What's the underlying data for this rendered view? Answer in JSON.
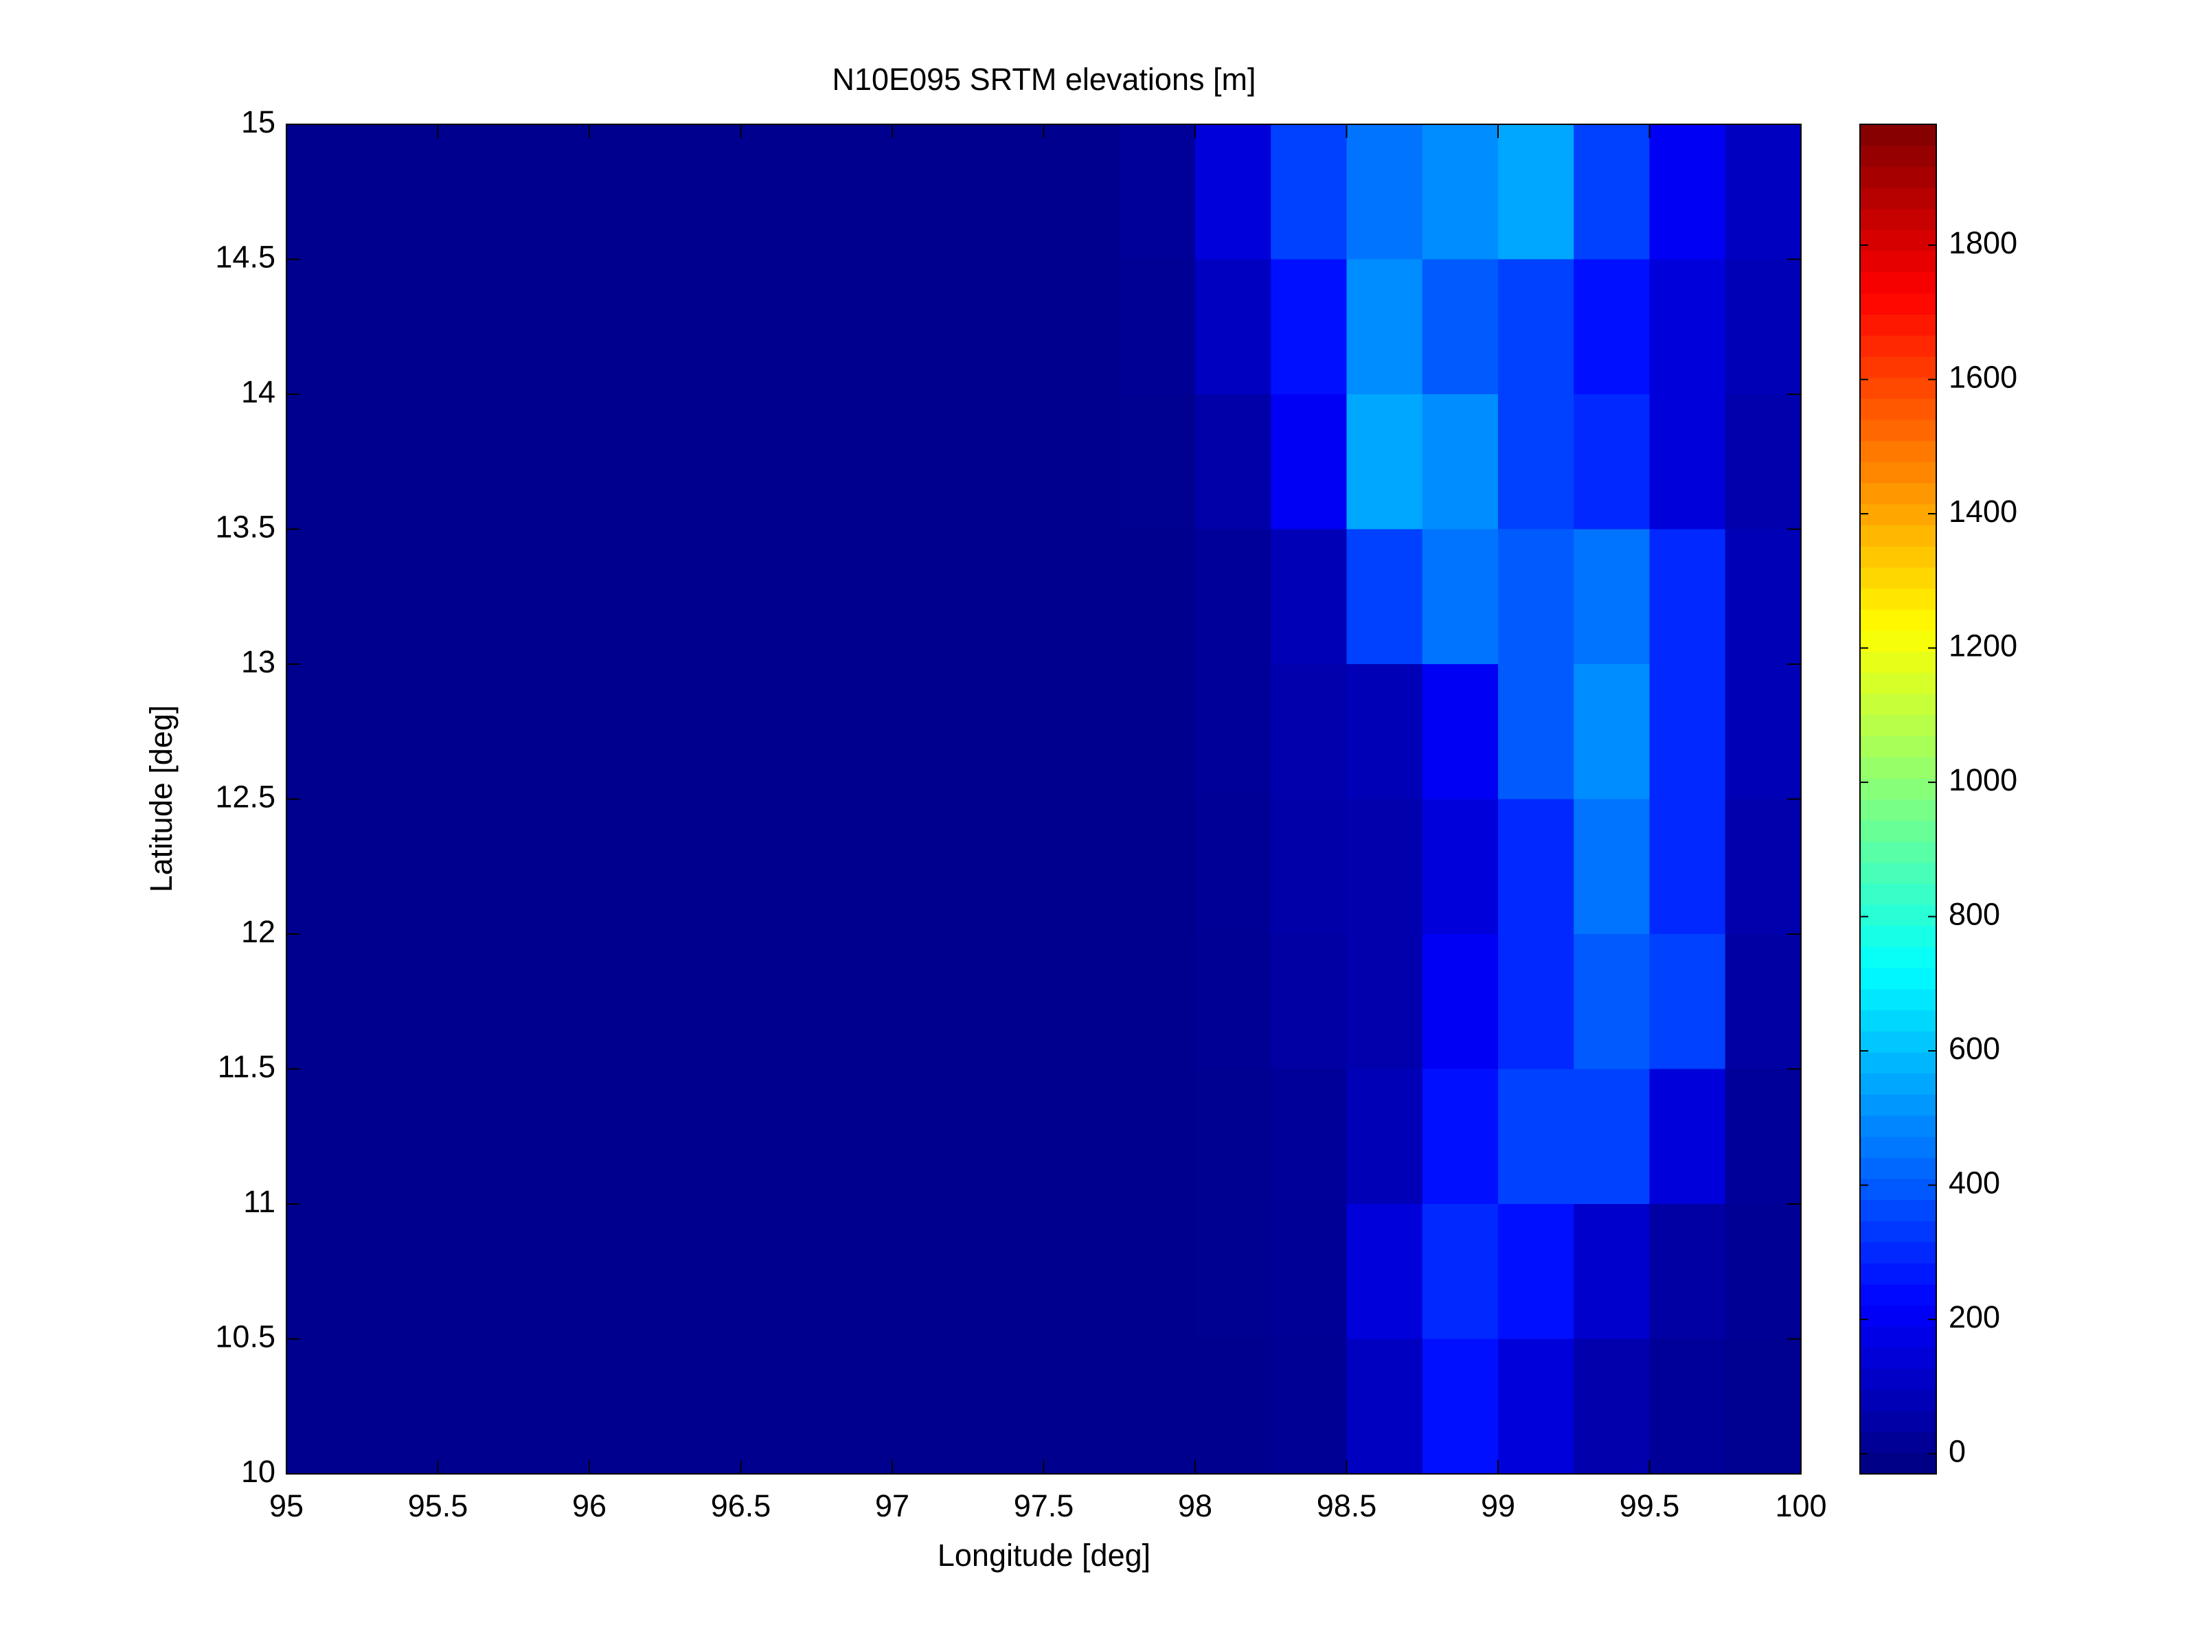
{
  "chart_data": {
    "type": "heatmap",
    "title": "N10E095 SRTM elevations [m]",
    "x_label": "Longitude [deg]",
    "y_label": "Latitude [deg]",
    "xlim": [
      95,
      100
    ],
    "ylim": [
      10,
      15
    ],
    "xticks": [
      95,
      95.5,
      96,
      96.5,
      97,
      97.5,
      98,
      98.5,
      99,
      99.5,
      100
    ],
    "yticks": [
      10,
      10.5,
      11,
      11.5,
      12,
      12.5,
      13,
      13.5,
      14,
      14.5,
      15
    ],
    "colormap": "jet",
    "colorbar": {
      "lim": [
        -30,
        1980
      ],
      "ticks": [
        0,
        200,
        400,
        600,
        800,
        1000,
        1200,
        1400,
        1600,
        1800
      ]
    },
    "x": [
      95.125,
      95.375,
      95.625,
      95.875,
      96.125,
      96.375,
      96.625,
      96.875,
      97.125,
      97.375,
      97.625,
      97.875,
      98.125,
      98.375,
      98.625,
      98.875,
      99.125,
      99.375,
      99.625,
      99.875
    ],
    "y": [
      14.75,
      14.25,
      13.75,
      13.25,
      12.75,
      12.25,
      11.75,
      11.25,
      10.75,
      10.25
    ],
    "z": [
      [
        0,
        0,
        0,
        0,
        0,
        0,
        0,
        0,
        0,
        0,
        0,
        20,
        150,
        350,
        450,
        500,
        550,
        350,
        200,
        100
      ],
      [
        0,
        0,
        0,
        0,
        0,
        0,
        0,
        0,
        0,
        0,
        0,
        10,
        100,
        250,
        500,
        400,
        350,
        250,
        150,
        80
      ],
      [
        0,
        0,
        0,
        0,
        0,
        0,
        0,
        0,
        0,
        0,
        0,
        5,
        50,
        200,
        550,
        500,
        350,
        300,
        150,
        60
      ],
      [
        0,
        0,
        0,
        0,
        0,
        0,
        0,
        0,
        0,
        0,
        0,
        0,
        20,
        80,
        350,
        450,
        400,
        450,
        300,
        80
      ],
      [
        0,
        0,
        0,
        0,
        0,
        0,
        0,
        0,
        0,
        0,
        0,
        0,
        20,
        60,
        80,
        200,
        400,
        500,
        300,
        80
      ],
      [
        0,
        0,
        0,
        0,
        0,
        0,
        0,
        0,
        0,
        0,
        0,
        0,
        15,
        50,
        60,
        150,
        300,
        450,
        300,
        60
      ],
      [
        0,
        0,
        0,
        0,
        0,
        0,
        0,
        0,
        0,
        0,
        0,
        0,
        10,
        40,
        60,
        200,
        300,
        400,
        350,
        40
      ],
      [
        0,
        0,
        0,
        0,
        0,
        0,
        0,
        0,
        0,
        0,
        0,
        0,
        5,
        20,
        80,
        250,
        350,
        350,
        150,
        20
      ],
      [
        0,
        0,
        0,
        0,
        0,
        0,
        0,
        0,
        0,
        0,
        0,
        0,
        5,
        15,
        150,
        300,
        250,
        120,
        40,
        10
      ],
      [
        0,
        0,
        0,
        0,
        0,
        0,
        0,
        0,
        0,
        0,
        0,
        0,
        0,
        10,
        100,
        250,
        150,
        60,
        20,
        5
      ]
    ]
  }
}
